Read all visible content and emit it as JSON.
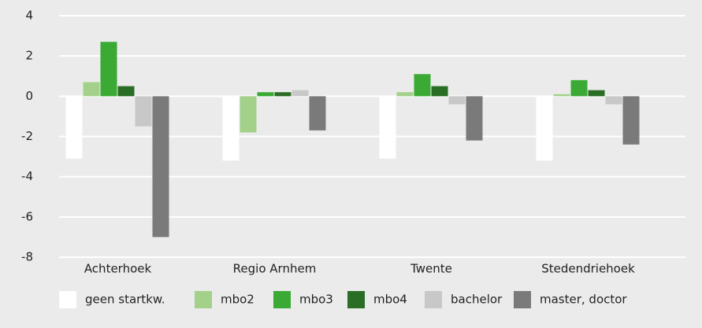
{
  "chart_data": {
    "type": "bar",
    "categories": [
      "Achterhoek",
      "Regio Arnhem",
      "Twente",
      "Stedendriehoek"
    ],
    "series": [
      {
        "name": "geen startkw.",
        "color": "#ffffff",
        "values": [
          -3.1,
          -3.2,
          -3.1,
          -3.2
        ]
      },
      {
        "name": "mbo2",
        "color": "#a3d18a",
        "values": [
          0.7,
          -1.8,
          0.2,
          0.1
        ]
      },
      {
        "name": "mbo3",
        "color": "#3aaa35",
        "values": [
          2.7,
          0.2,
          1.1,
          0.8
        ]
      },
      {
        "name": "mbo4",
        "color": "#2a6e25",
        "values": [
          0.5,
          0.2,
          0.5,
          0.3
        ]
      },
      {
        "name": "bachelor",
        "color": "#c8c8c8",
        "values": [
          -1.5,
          0.3,
          -0.4,
          -0.4
        ]
      },
      {
        "name": "master, doctor",
        "color": "#7a7a7a",
        "values": [
          -7.0,
          -1.7,
          -2.2,
          -2.4
        ]
      }
    ],
    "ylim": [
      -8,
      4
    ],
    "yticks": [
      -8,
      -6,
      -4,
      -2,
      0,
      2,
      4
    ],
    "grid": true,
    "legend": "bottom"
  }
}
